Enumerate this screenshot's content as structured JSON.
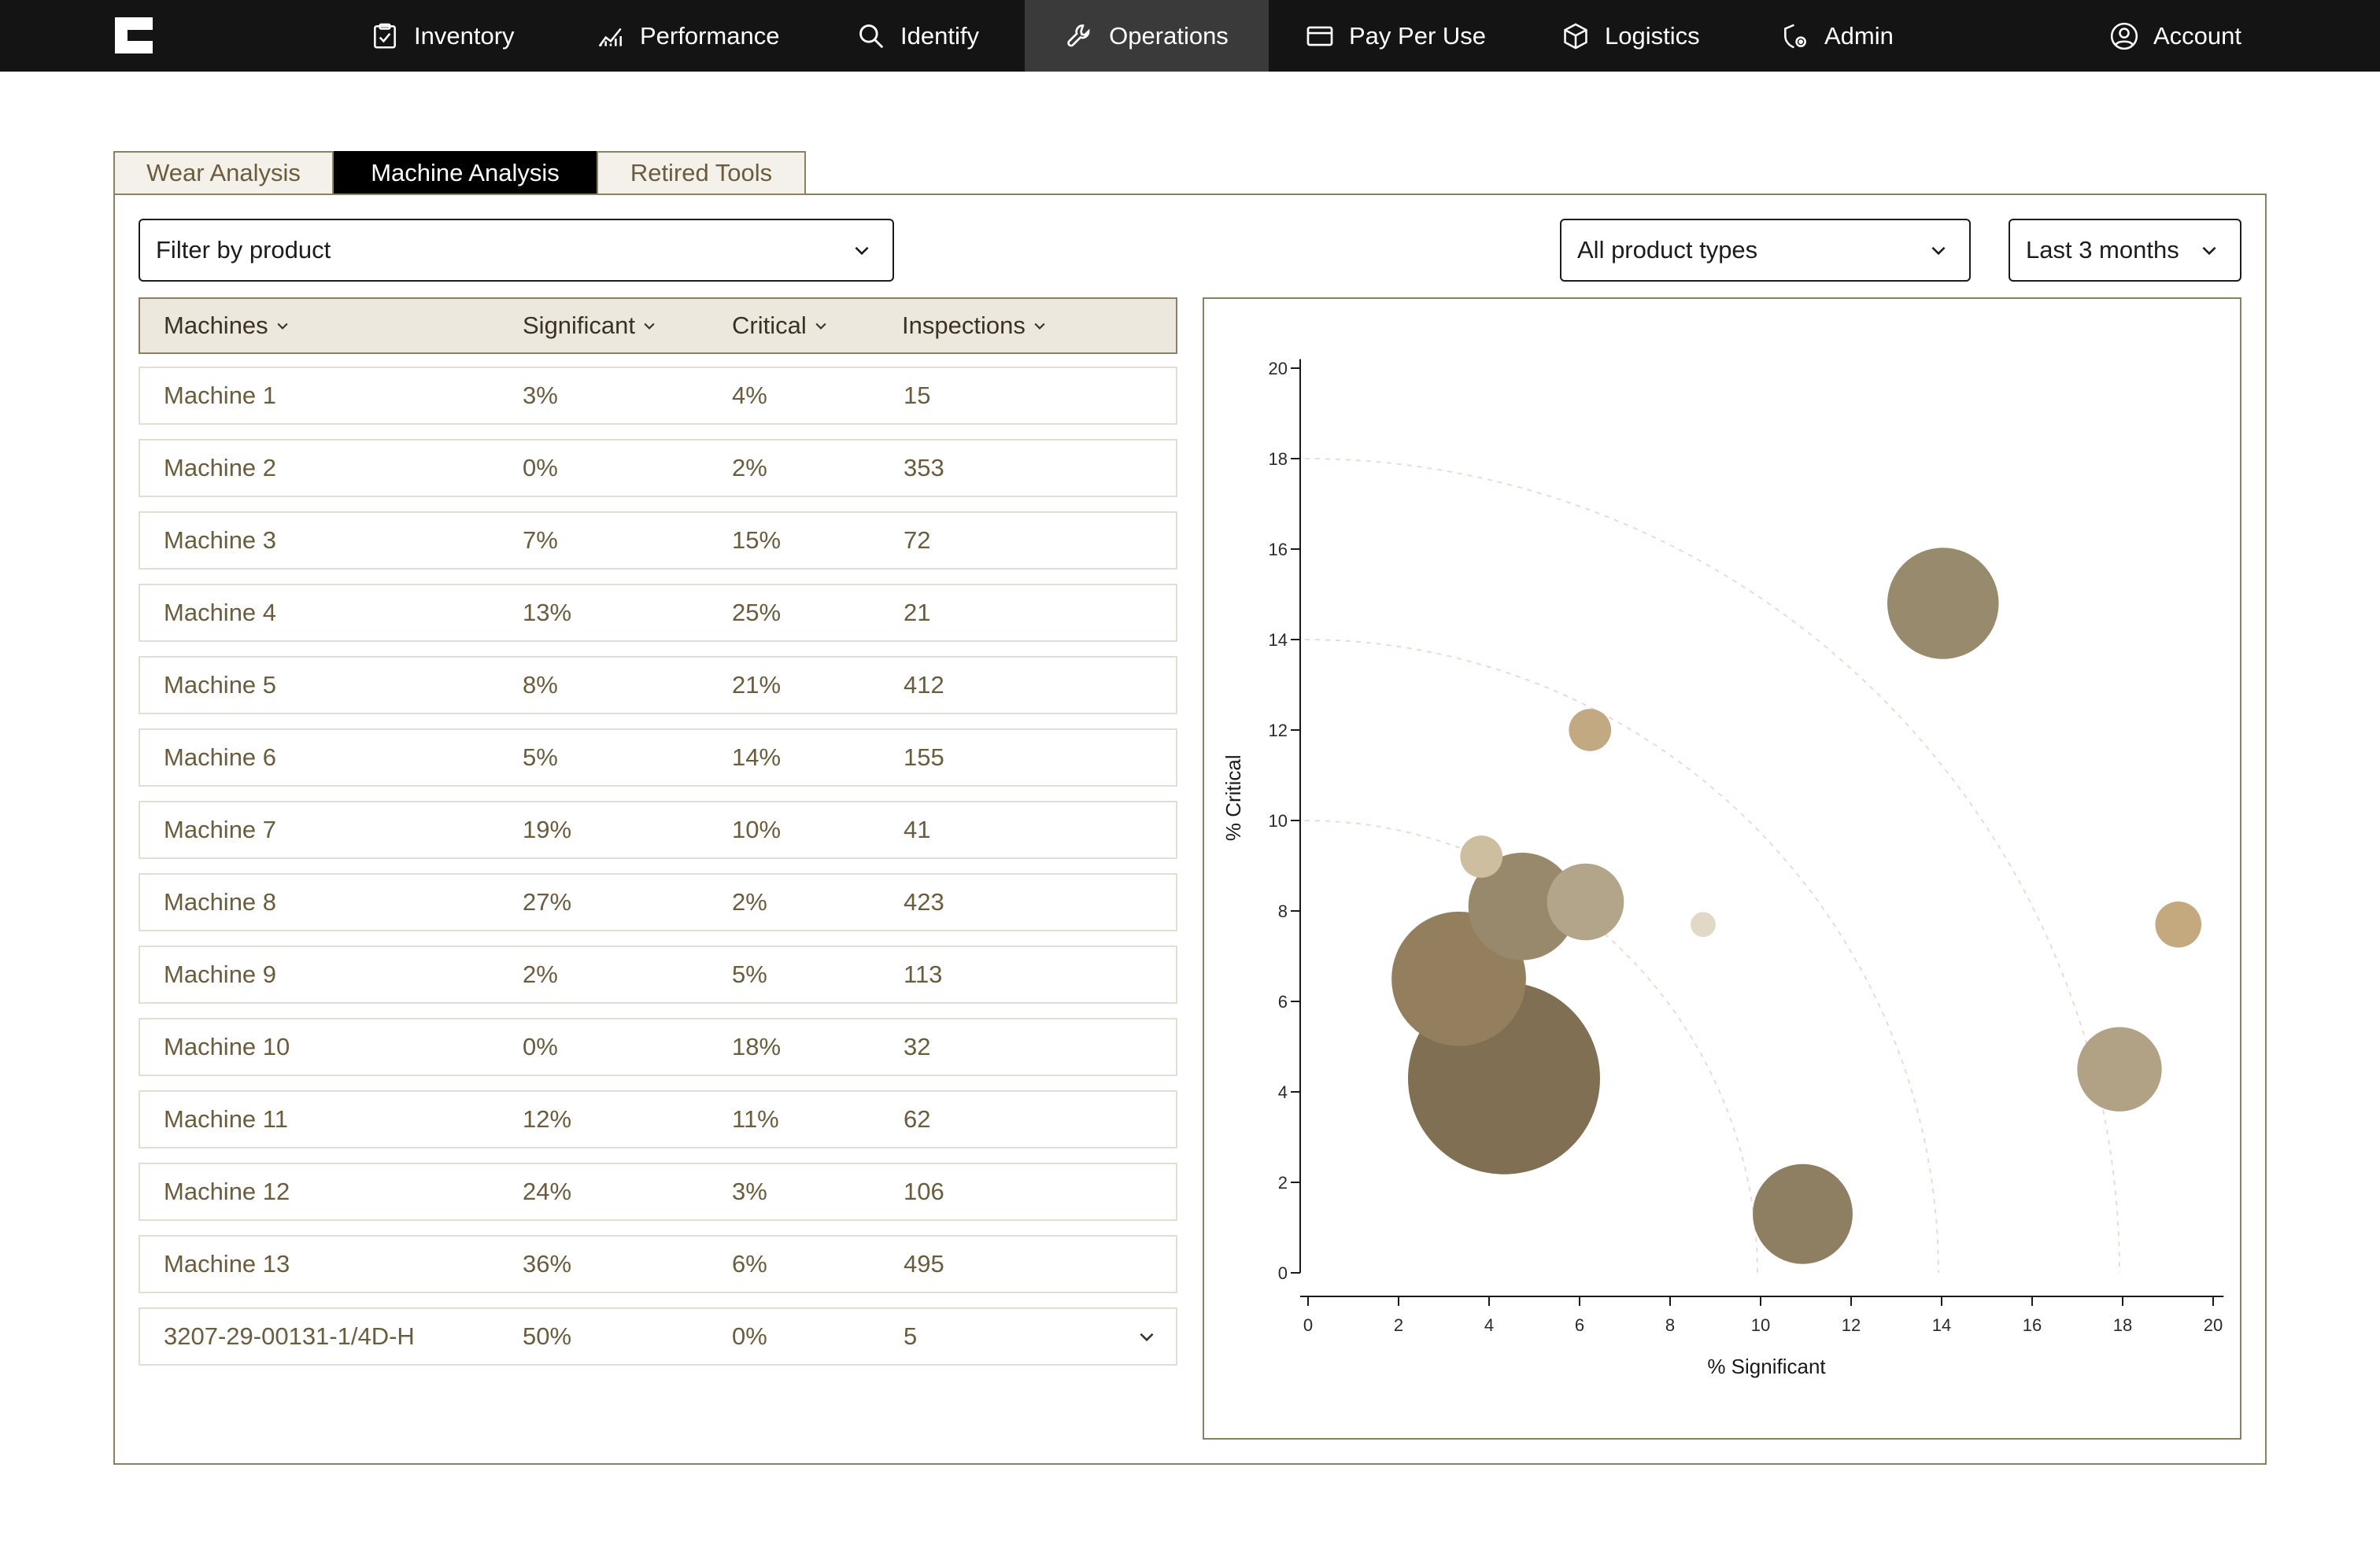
{
  "nav": {
    "items": [
      {
        "label": "Inventory",
        "icon": "clipboard-check-icon"
      },
      {
        "label": "Performance",
        "icon": "chart-line-icon"
      },
      {
        "label": "Identify",
        "icon": "search-icon"
      },
      {
        "label": "Operations",
        "icon": "wrench-icon"
      },
      {
        "label": "Pay Per Use",
        "icon": "credit-card-icon"
      },
      {
        "label": "Logistics",
        "icon": "box-icon"
      },
      {
        "label": "Admin",
        "icon": "shield-gear-icon"
      }
    ],
    "active": "Operations",
    "account_label": "Account"
  },
  "tabs": [
    "Wear Analysis",
    "Machine Analysis",
    "Retired Tools"
  ],
  "active_tab": "Machine Analysis",
  "filters": {
    "product_filter": "Filter by product",
    "product_types": "All product types",
    "time_range": "Last 3 months"
  },
  "table": {
    "headers": [
      "Machines",
      "Significant",
      "Critical",
      "Inspections"
    ],
    "rows": [
      {
        "machine": "Machine 1",
        "significant": "3%",
        "critical": "4%",
        "inspections": "15"
      },
      {
        "machine": "Machine 2",
        "significant": "0%",
        "critical": "2%",
        "inspections": "353"
      },
      {
        "machine": "Machine 3",
        "significant": "7%",
        "critical": "15%",
        "inspections": "72"
      },
      {
        "machine": "Machine 4",
        "significant": "13%",
        "critical": "25%",
        "inspections": "21"
      },
      {
        "machine": "Machine 5",
        "significant": "8%",
        "critical": "21%",
        "inspections": "412"
      },
      {
        "machine": "Machine 6",
        "significant": "5%",
        "critical": "14%",
        "inspections": "155"
      },
      {
        "machine": "Machine 7",
        "significant": "19%",
        "critical": "10%",
        "inspections": "41"
      },
      {
        "machine": "Machine 8",
        "significant": "27%",
        "critical": "2%",
        "inspections": "423"
      },
      {
        "machine": "Machine 9",
        "significant": "2%",
        "critical": "5%",
        "inspections": "113"
      },
      {
        "machine": "Machine 10",
        "significant": "0%",
        "critical": "18%",
        "inspections": "32"
      },
      {
        "machine": "Machine 11",
        "significant": "12%",
        "critical": "11%",
        "inspections": "62"
      },
      {
        "machine": "Machine 12",
        "significant": "24%",
        "critical": "3%",
        "inspections": "106"
      },
      {
        "machine": "Machine 13",
        "significant": "36%",
        "critical": "6%",
        "inspections": "495"
      },
      {
        "machine": "3207-29-00131-1/4D-H",
        "significant": "50%",
        "critical": "0%",
        "inspections": "5"
      }
    ]
  },
  "colors": {
    "nav_bg": "#141414",
    "accent": "#6b5c3e",
    "header_bg": "#ede8dd",
    "border": "#8c8064"
  },
  "chart_data": {
    "type": "scatter",
    "xlabel": "% Significant",
    "ylabel": "% Critical",
    "xlim": [
      0,
      20
    ],
    "ylim": [
      0,
      20
    ],
    "xticks": [
      0,
      2,
      4,
      6,
      8,
      10,
      12,
      14,
      16,
      18,
      20
    ],
    "yticks": [
      0,
      2,
      4,
      6,
      8,
      10,
      12,
      14,
      16,
      18,
      20
    ],
    "reference_arcs": [
      10,
      14,
      18
    ],
    "points": [
      {
        "x": 4.4,
        "y": 4.3,
        "size": 1.0,
        "color": "#806f52"
      },
      {
        "x": 3.4,
        "y": 6.5,
        "size": 0.7,
        "color": "#937f5e"
      },
      {
        "x": 4.8,
        "y": 8.1,
        "size": 0.56,
        "color": "#99896c"
      },
      {
        "x": 6.2,
        "y": 8.2,
        "size": 0.4,
        "color": "#b3a58a"
      },
      {
        "x": 3.9,
        "y": 9.2,
        "size": 0.22,
        "color": "#cdbe9f"
      },
      {
        "x": 6.3,
        "y": 12.0,
        "size": 0.22,
        "color": "#c2a982"
      },
      {
        "x": 8.8,
        "y": 7.7,
        "size": 0.13,
        "color": "#e2d8c6"
      },
      {
        "x": 14.1,
        "y": 14.8,
        "size": 0.58,
        "color": "#988a6c"
      },
      {
        "x": 11.0,
        "y": 1.3,
        "size": 0.52,
        "color": "#8e7f62"
      },
      {
        "x": 18.0,
        "y": 4.5,
        "size": 0.44,
        "color": "#b1a286"
      },
      {
        "x": 19.3,
        "y": 7.7,
        "size": 0.24,
        "color": "#c4a97f"
      }
    ]
  }
}
